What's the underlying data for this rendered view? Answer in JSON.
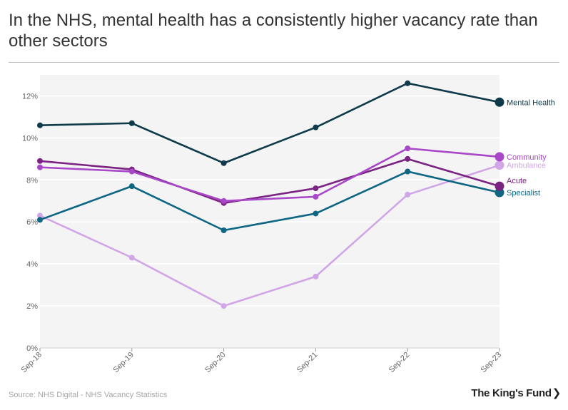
{
  "title": "In the NHS, mental health has a consistently higher vacancy rate than other sectors",
  "source": "Source: NHS Digital - NHS Vacancy Statistics",
  "logo": {
    "text": "The King's Fund",
    "icon": "chevron-right-icon"
  },
  "chart_data": {
    "type": "line",
    "title": "In the NHS, mental health has a consistently higher vacancy rate than other sectors",
    "xlabel": "",
    "ylabel": "",
    "categories": [
      "Sep-18",
      "Sep-19",
      "Sep-20",
      "Sep-21",
      "Sep-22",
      "Sep-23"
    ],
    "ylim": [
      0,
      13
    ],
    "yticks": [
      0,
      2,
      4,
      6,
      8,
      10,
      12
    ],
    "ytick_labels": [
      "0%",
      "2%",
      "4%",
      "6%",
      "8%",
      "10%",
      "12%"
    ],
    "grid": true,
    "legend": "end-of-line labels",
    "series": [
      {
        "name": "Ambulance",
        "color": "#d0a6e6",
        "values": [
          6.3,
          4.3,
          2.0,
          3.4,
          7.3,
          8.7
        ]
      },
      {
        "name": "Specialist",
        "color": "#0e6683",
        "values": [
          6.1,
          7.7,
          5.6,
          6.4,
          8.4,
          7.4
        ]
      },
      {
        "name": "Acute",
        "color": "#7b2382",
        "values": [
          8.9,
          8.5,
          6.9,
          7.6,
          9.0,
          7.7
        ]
      },
      {
        "name": "Community",
        "color": "#a848c8",
        "values": [
          8.6,
          8.4,
          7.0,
          7.2,
          9.5,
          9.1
        ]
      },
      {
        "name": "Mental Health",
        "color": "#0f3a4a",
        "values": [
          10.6,
          10.7,
          8.8,
          10.5,
          12.6,
          11.7
        ]
      }
    ]
  }
}
